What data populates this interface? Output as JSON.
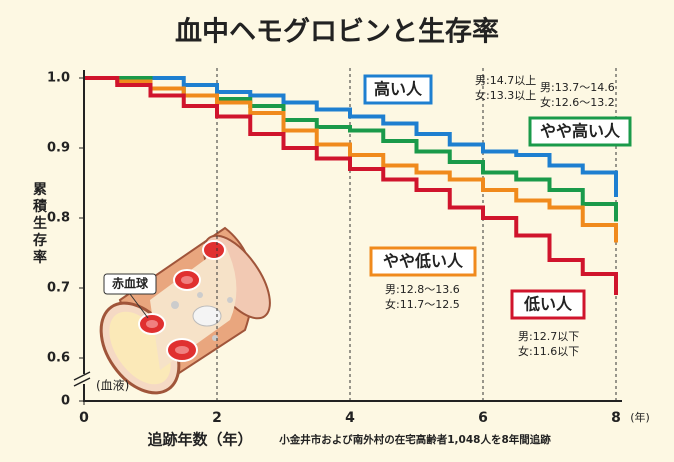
{
  "chart_data": {
    "type": "line",
    "title": "血中ヘモグロビンと生存率",
    "y_label": "累積生存率",
    "x_label": "追跡年数（年）",
    "x_unit": "(年)",
    "source": "小金井市および南外村の在宅高齢者1,048人を8年間追跡",
    "illustration_labels": [
      "赤血球",
      "(血液)"
    ],
    "x": [
      0,
      0.5,
      1,
      1.5,
      2,
      2.5,
      3,
      3.5,
      4,
      4.5,
      5,
      5.5,
      6,
      6.5,
      7,
      7.5,
      8
    ],
    "series": [
      {
        "name": "高い人",
        "color": "#1e7fd0",
        "notes": [
          "男:14.7以上",
          "女:13.3以上"
        ],
        "values": [
          1.0,
          1.0,
          1.0,
          0.99,
          0.98,
          0.975,
          0.965,
          0.955,
          0.945,
          0.935,
          0.92,
          0.905,
          0.895,
          0.89,
          0.875,
          0.865,
          0.83
        ]
      },
      {
        "name": "やや高い人",
        "color": "#1a9a4a",
        "notes": [
          "男:13.7～14.6",
          "女:12.6～13.2"
        ],
        "values": [
          1.0,
          1.0,
          0.985,
          0.975,
          0.97,
          0.96,
          0.94,
          0.93,
          0.925,
          0.91,
          0.895,
          0.88,
          0.865,
          0.855,
          0.84,
          0.82,
          0.795
        ]
      },
      {
        "name": "やや低い人",
        "color": "#f08a1c",
        "notes": [
          "男:12.8～13.6",
          "女:11.7～12.5"
        ],
        "values": [
          1.0,
          0.995,
          0.985,
          0.975,
          0.965,
          0.95,
          0.925,
          0.905,
          0.89,
          0.875,
          0.865,
          0.855,
          0.84,
          0.825,
          0.815,
          0.79,
          0.765
        ]
      },
      {
        "name": "低い人",
        "color": "#d0142c",
        "notes": [
          "男:12.7以下",
          "女:11.6以下"
        ],
        "values": [
          1.0,
          0.99,
          0.975,
          0.96,
          0.945,
          0.92,
          0.9,
          0.885,
          0.87,
          0.855,
          0.84,
          0.815,
          0.8,
          0.775,
          0.74,
          0.72,
          0.69
        ]
      }
    ],
    "xlim": [
      0,
      8
    ],
    "xticks": [
      0,
      2,
      4,
      6,
      8
    ],
    "ylim": [
      0,
      1.0
    ],
    "y_axis_break": true,
    "yticks": [
      0,
      0.6,
      0.7,
      0.8,
      0.9,
      {
        "value": 1,
        "label": "1.0"
      }
    ],
    "grid": "x-dashed"
  }
}
